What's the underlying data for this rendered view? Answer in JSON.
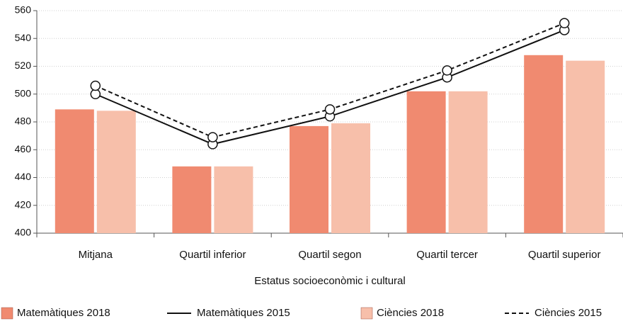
{
  "chart_data": {
    "type": "bar",
    "x_label": "Estatus socioeconòmic i cultural",
    "categories": [
      "Mitjana",
      "Quartil inferior",
      "Quartil segon",
      "Quartil tercer",
      "Quartil superior"
    ],
    "series": [
      {
        "name": "Matemàtiques 2018",
        "type": "bar",
        "color": "#f08a70",
        "values": [
          489,
          448,
          477,
          502,
          528
        ]
      },
      {
        "name": "Matemàtiques 2015",
        "type": "line",
        "dashed": false,
        "color": "#111111",
        "values": [
          500,
          464,
          484,
          512,
          546
        ]
      },
      {
        "name": "Ciències 2018",
        "type": "bar",
        "color": "#f7bfaa",
        "values": [
          488,
          448,
          479,
          502,
          524
        ]
      },
      {
        "name": "Ciències 2015",
        "type": "line",
        "dashed": true,
        "color": "#111111",
        "values": [
          506,
          469,
          489,
          517,
          551
        ]
      }
    ],
    "ylim": [
      400,
      560
    ],
    "yticks": [
      400,
      420,
      440,
      460,
      480,
      500,
      520,
      540,
      560
    ],
    "grid": true,
    "legend": "bottom"
  }
}
